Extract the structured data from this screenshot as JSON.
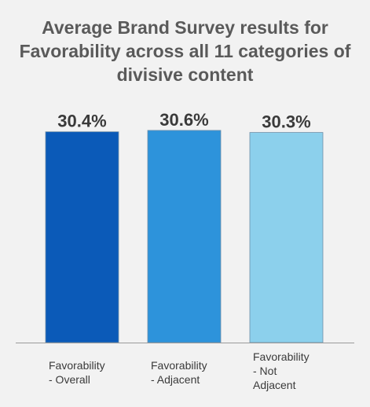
{
  "chart_data": {
    "type": "bar",
    "title": "Average Brand Survey results for Favorability across all 11 categories of divisive content",
    "categories": [
      "Favorability - Overall",
      "Favorability - Adjacent",
      "Favorability - Not Adjacent"
    ],
    "category_lines": [
      [
        "Favorability",
        "- Overall"
      ],
      [
        "Favorability",
        "- Adjacent"
      ],
      [
        "Favorability",
        "- Not",
        "Adjacent"
      ]
    ],
    "values": [
      30.4,
      30.6,
      30.3
    ],
    "data_labels": [
      "30.4%",
      "30.6%",
      "30.3%"
    ],
    "ylim": [
      0,
      31.5
    ],
    "grid": false,
    "legend": "none",
    "colors": [
      "#0b5ab8",
      "#2d93db",
      "#8cd0ec"
    ],
    "xlabel": "",
    "ylabel": ""
  }
}
